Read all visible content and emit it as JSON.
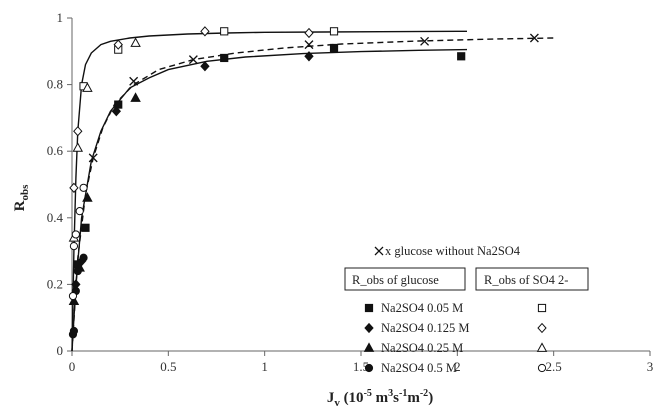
{
  "chart_data": {
    "type": "scatter",
    "xlabel": {
      "main": "J",
      "sub": "v",
      "unit_open": " (10",
      "unit_exp": "-5",
      "unit_mid": " m",
      "unit_exp2": "3",
      "unit_mid2": "s",
      "unit_exp3": "-1",
      "unit_mid3": "m",
      "unit_exp4": "-2",
      "unit_close": ")"
    },
    "ylabel": {
      "main": "R",
      "sub": "obs"
    },
    "xlim": [
      0,
      3
    ],
    "ylim": [
      0,
      1
    ],
    "xticks": [
      "0",
      "0.5",
      "1",
      "1.5",
      "2",
      "2.5",
      "3"
    ],
    "xtick_values": [
      0,
      0.5,
      1,
      1.5,
      2,
      2.5,
      3
    ],
    "yticks": [
      "0",
      "0.2",
      "0.4",
      "0.6",
      "0.8",
      "1"
    ],
    "ytick_values": [
      0,
      0.2,
      0.4,
      0.6,
      0.8,
      1
    ],
    "grid": false,
    "legend": {
      "placement": "right",
      "x_title": "x glucose without Na2SO4",
      "glucose_header": "R_obs of glucose",
      "sulfate_header": "R_obs of SO4 2-",
      "rows": [
        {
          "label": "Na2SO4 0.05 M",
          "glucose_marker": "square-filled",
          "sulfate_marker": "square-open"
        },
        {
          "label": "Na2SO4 0.125 M",
          "glucose_marker": "diamond-filled",
          "sulfate_marker": "diamond-open"
        },
        {
          "label": "Na2SO4 0.25 M",
          "glucose_marker": "triangle-filled",
          "sulfate_marker": "triangle-open"
        },
        {
          "label": "Na2SO4 0.5 M",
          "glucose_marker": "circle-filled",
          "sulfate_marker": "circle-open"
        }
      ]
    },
    "series": [
      {
        "name": "glucose without Na2SO4",
        "marker": "x",
        "points": [
          [
            0.11,
            0.58
          ],
          [
            0.32,
            0.81
          ],
          [
            0.63,
            0.875
          ],
          [
            1.23,
            0.92
          ],
          [
            1.83,
            0.93
          ],
          [
            2.4,
            0.94
          ]
        ]
      },
      {
        "name": "glucose, Na2SO4 0.05 M",
        "marker": "square-filled",
        "points": [
          [
            0.03,
            0.26
          ],
          [
            0.07,
            0.37
          ],
          [
            0.24,
            0.74
          ],
          [
            0.79,
            0.88
          ],
          [
            1.36,
            0.91
          ],
          [
            2.02,
            0.885
          ]
        ]
      },
      {
        "name": "glucose, Na2SO4 0.125 M",
        "marker": "diamond-filled",
        "points": [
          [
            0.02,
            0.2
          ],
          [
            0.05,
            0.27
          ],
          [
            0.23,
            0.72
          ],
          [
            0.69,
            0.855
          ],
          [
            1.23,
            0.885
          ]
        ]
      },
      {
        "name": "glucose, Na2SO4 0.25 M",
        "marker": "triangle-filled",
        "points": [
          [
            0.01,
            0.15
          ],
          [
            0.04,
            0.25
          ],
          [
            0.08,
            0.46
          ],
          [
            0.33,
            0.76
          ]
        ]
      },
      {
        "name": "glucose, Na2SO4 0.5 M",
        "marker": "circle-filled",
        "points": [
          [
            0.005,
            0.05
          ],
          [
            0.01,
            0.06
          ],
          [
            0.02,
            0.18
          ],
          [
            0.03,
            0.24
          ],
          [
            0.06,
            0.28
          ]
        ]
      },
      {
        "name": "SO4 2-, Na2SO4 0.05 M",
        "marker": "square-open",
        "points": [
          [
            0.06,
            0.795
          ],
          [
            0.24,
            0.905
          ],
          [
            0.79,
            0.96
          ],
          [
            1.36,
            0.96
          ]
        ]
      },
      {
        "name": "SO4 2-, Na2SO4 0.125 M",
        "marker": "diamond-open",
        "points": [
          [
            0.01,
            0.49
          ],
          [
            0.03,
            0.66
          ],
          [
            0.24,
            0.92
          ],
          [
            0.69,
            0.96
          ],
          [
            1.23,
            0.955
          ]
        ]
      },
      {
        "name": "SO4 2-, Na2SO4 0.25 M",
        "marker": "triangle-open",
        "points": [
          [
            0.01,
            0.34
          ],
          [
            0.03,
            0.61
          ],
          [
            0.08,
            0.79
          ],
          [
            0.33,
            0.925
          ]
        ]
      },
      {
        "name": "SO4 2-, Na2SO4 0.5 M",
        "marker": "circle-open",
        "points": [
          [
            0.005,
            0.165
          ],
          [
            0.01,
            0.315
          ],
          [
            0.02,
            0.35
          ],
          [
            0.04,
            0.42
          ],
          [
            0.06,
            0.49
          ]
        ]
      }
    ],
    "fit_curves": [
      {
        "name": "SO4 2- fit",
        "style": "solid",
        "x": [
          0,
          0.01,
          0.02,
          0.03,
          0.05,
          0.07,
          0.1,
          0.15,
          0.2,
          0.3,
          0.4,
          0.6,
          0.8,
          1,
          1.3,
          1.6,
          2,
          2.05
        ],
        "y": [
          0,
          0.3,
          0.52,
          0.66,
          0.8,
          0.86,
          0.895,
          0.92,
          0.93,
          0.94,
          0.946,
          0.952,
          0.955,
          0.957,
          0.958,
          0.959,
          0.96,
          0.96
        ]
      },
      {
        "name": "glucose fit",
        "style": "solid",
        "x": [
          0,
          0.02,
          0.05,
          0.1,
          0.15,
          0.2,
          0.3,
          0.4,
          0.5,
          0.7,
          0.9,
          1.2,
          1.5,
          1.8,
          2.05
        ],
        "y": [
          0,
          0.2,
          0.4,
          0.57,
          0.66,
          0.72,
          0.79,
          0.82,
          0.845,
          0.87,
          0.883,
          0.893,
          0.899,
          0.903,
          0.905
        ]
      },
      {
        "name": "glucose without Na2SO4 fit",
        "style": "dashed",
        "x": [
          0,
          0.03,
          0.07,
          0.11,
          0.16,
          0.22,
          0.32,
          0.45,
          0.63,
          0.85,
          1.1,
          1.4,
          1.8,
          2.2,
          2.5
        ],
        "y": [
          0,
          0.28,
          0.47,
          0.58,
          0.67,
          0.74,
          0.8,
          0.845,
          0.875,
          0.895,
          0.91,
          0.922,
          0.931,
          0.937,
          0.94
        ]
      }
    ]
  }
}
